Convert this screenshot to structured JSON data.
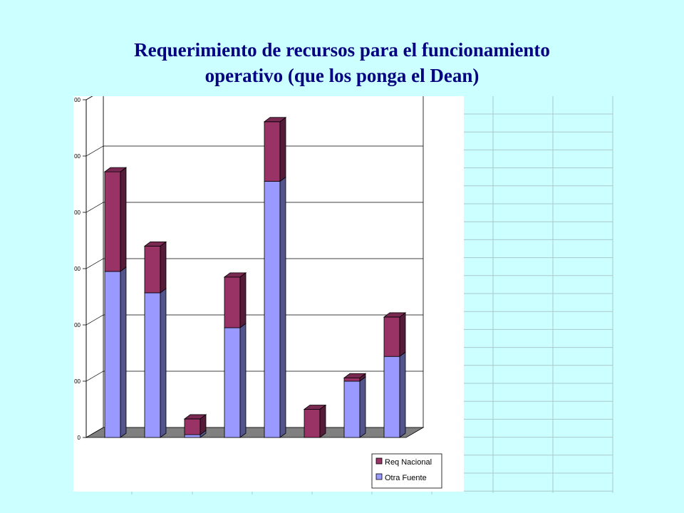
{
  "slide": {
    "title_line1": "Requerimiento de recursos para el funcionamiento",
    "title_line2": "operativo (que los ponga el Dean)"
  },
  "colors": {
    "background": "#ccffff",
    "title": "#000080",
    "req_nacional": "#993366",
    "otra_fuente": "#9999ff",
    "floor": "#808080",
    "sheet_grid": "#a9c8cc"
  },
  "chart_data": {
    "type": "bar",
    "stacked": true,
    "three_d": true,
    "categories": [
      "",
      "",
      "",
      "",
      "",
      "",
      "",
      ""
    ],
    "series": [
      {
        "name": "Otra Fuente",
        "values": [
          295,
          257,
          5,
          195,
          455,
          0,
          100,
          144
        ]
      },
      {
        "name": "Req Nacional",
        "values": [
          177,
          83,
          28,
          90,
          106,
          50,
          6,
          70
        ]
      }
    ],
    "ytick_labels": [
      "0",
      "00",
      "00",
      "00",
      "00",
      "00",
      "00"
    ],
    "ylim": [
      0,
      600
    ],
    "ytick_step": 100,
    "grid": true,
    "legend_position": "bottom-right"
  }
}
